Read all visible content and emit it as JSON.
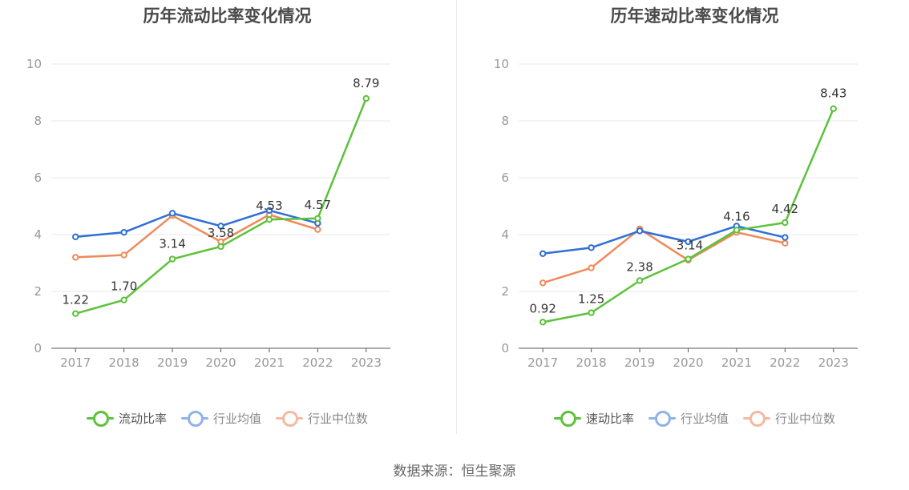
{
  "source_text": "数据来源：恒生聚源",
  "colors": {
    "main": "#5cc23a",
    "avg": "#2f6fd6",
    "median": "#ef8a5a",
    "grid": "#e6e8ee",
    "axis": "#555555"
  },
  "chart_data": [
    {
      "type": "line",
      "title": "历年流动比率变化情况",
      "categories": [
        "2017",
        "2018",
        "2019",
        "2020",
        "2021",
        "2022",
        "2023"
      ],
      "ylim": [
        0,
        10
      ],
      "yticks": [
        0,
        2,
        4,
        6,
        8,
        10
      ],
      "grid": true,
      "legend_position": "bottom",
      "series": [
        {
          "name": "流动比率",
          "color": "#5cc23a",
          "values": [
            1.22,
            1.7,
            3.14,
            3.58,
            4.53,
            4.57,
            8.79
          ],
          "labels": [
            "1.22",
            "1.70",
            "3.14",
            "3.58",
            "4.53",
            "4.57",
            "8.79"
          ]
        },
        {
          "name": "行业均值",
          "color": "#2f6fd6",
          "values": [
            3.92,
            4.08,
            4.75,
            4.3,
            4.85,
            4.4,
            null
          ]
        },
        {
          "name": "行业中位数",
          "color": "#ef8a5a",
          "values": [
            3.2,
            3.28,
            4.67,
            3.75,
            4.7,
            4.18,
            null
          ]
        }
      ]
    },
    {
      "type": "line",
      "title": "历年速动比率变化情况",
      "categories": [
        "2017",
        "2018",
        "2019",
        "2020",
        "2021",
        "2022",
        "2023"
      ],
      "ylim": [
        0,
        10
      ],
      "yticks": [
        0,
        2,
        4,
        6,
        8,
        10
      ],
      "grid": true,
      "legend_position": "bottom",
      "series": [
        {
          "name": "速动比率",
          "color": "#5cc23a",
          "values": [
            0.92,
            1.25,
            2.38,
            3.14,
            4.16,
            4.42,
            8.43
          ],
          "labels": [
            "0.92",
            "1.25",
            "2.38",
            "3.14",
            "4.16",
            "4.42",
            "8.43"
          ]
        },
        {
          "name": "行业均值",
          "color": "#2f6fd6",
          "values": [
            3.33,
            3.54,
            4.13,
            3.75,
            4.3,
            3.9,
            null
          ]
        },
        {
          "name": "行业中位数",
          "color": "#ef8a5a",
          "values": [
            2.3,
            2.83,
            4.2,
            3.1,
            4.08,
            3.7,
            null
          ]
        }
      ]
    }
  ]
}
